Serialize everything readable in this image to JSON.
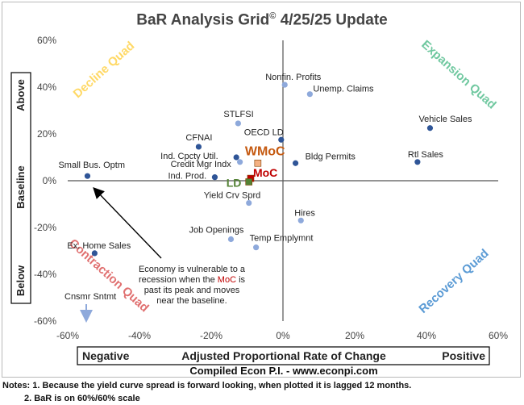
{
  "title": {
    "main": "BaR Analysis Grid",
    "mark": "©",
    "date": "4/25/25 Update"
  },
  "chart_data": {
    "type": "scatter",
    "xlim": [
      -0.6,
      0.6
    ],
    "ylim": [
      -0.6,
      0.6
    ],
    "x_ticks": [
      "-60%",
      "-40%",
      "-20%",
      "0%",
      "20%",
      "40%",
      "60%"
    ],
    "y_ticks": [
      "60%",
      "40%",
      "20%",
      "0%",
      "-20%",
      "-40%",
      "-60%"
    ],
    "grid": false,
    "points": [
      {
        "label": "Nonfin. Profits",
        "x": 0.005,
        "y": 0.41,
        "color": "#8ea9db"
      },
      {
        "label": "Unemp. Claims",
        "x": 0.075,
        "y": 0.37,
        "color": "#8ea9db"
      },
      {
        "label": "Vehicle Sales",
        "x": 0.41,
        "y": 0.225,
        "color": "#2f5597"
      },
      {
        "label": "STLFSI",
        "x": -0.125,
        "y": 0.245,
        "color": "#8ea9db"
      },
      {
        "label": "OECD LD",
        "x": -0.005,
        "y": 0.175,
        "color": "#2f5597"
      },
      {
        "label": "CFNAI",
        "x": -0.235,
        "y": 0.145,
        "color": "#2f5597"
      },
      {
        "label": "Ind. Cpcty Util.",
        "x": -0.13,
        "y": 0.1,
        "color": "#2f5597"
      },
      {
        "label": "Credit Mgr Indx",
        "x": -0.12,
        "y": 0.08,
        "color": "#8ea9db"
      },
      {
        "label": "Bldg Permits",
        "x": 0.035,
        "y": 0.075,
        "color": "#2f5597"
      },
      {
        "label": "Rtl Sales",
        "x": 0.375,
        "y": 0.08,
        "color": "#2f5597"
      },
      {
        "label": "Small Bus. Optm",
        "x": -0.545,
        "y": 0.02,
        "color": "#2f5597"
      },
      {
        "label": "Ind. Prod.",
        "x": -0.19,
        "y": 0.015,
        "color": "#2f5597"
      },
      {
        "label": "Yield Crv Sprd",
        "x": -0.095,
        "y": -0.095,
        "color": "#8ea9db"
      },
      {
        "label": "Hires",
        "x": 0.05,
        "y": -0.17,
        "color": "#8ea9db"
      },
      {
        "label": "Job Openings",
        "x": -0.145,
        "y": -0.25,
        "color": "#8ea9db"
      },
      {
        "label": "Temp Emplymnt",
        "x": -0.075,
        "y": -0.285,
        "color": "#8ea9db"
      },
      {
        "label": "Ex. Home Sales",
        "x": -0.525,
        "y": -0.31,
        "color": "#2f5597"
      }
    ],
    "highlights": [
      {
        "label": "WMoC",
        "x": -0.07,
        "y": 0.075,
        "color": "#f4b183",
        "text_color": "#c55a11"
      },
      {
        "label": "MoC",
        "x": -0.09,
        "y": 0.01,
        "color": "#c00000",
        "text_color": "#c00000"
      },
      {
        "label": "LD",
        "x": -0.095,
        "y": -0.005,
        "color": "#548235",
        "text_color": "#548235"
      }
    ],
    "off_chart": {
      "label": "Cnsmr Sntmt",
      "arrow_color": "#8ea9db"
    },
    "quadrants": [
      {
        "label": "Decline Quad",
        "color": "#ffd966"
      },
      {
        "label": "Expansion Quad",
        "color": "#70c8a0"
      },
      {
        "label": "Contraction Quad",
        "color": "#e07070"
      },
      {
        "label": "Recovery Quad",
        "color": "#5b9bd5"
      }
    ],
    "y_side": {
      "above": "Above",
      "baseline": "Baseline",
      "below": "Below"
    },
    "x_banner": {
      "left": "Negative",
      "center": "Adjusted Proportional Rate of Change",
      "right": "Positive"
    },
    "annotation": {
      "lines": [
        "Economy is vulnerable to a",
        "recession when the ",
        "MoC",
        " is",
        "past its peak and moves",
        "near the baseline."
      ]
    }
  },
  "footer": {
    "credit": "Compiled Econ P.I. - www.econpi.com",
    "note1": "Notes: 1. Because the yield curve spread is forward looking, when plotted it is lagged 12 months.",
    "note2": "2. BaR is on 60%/60% scale"
  }
}
